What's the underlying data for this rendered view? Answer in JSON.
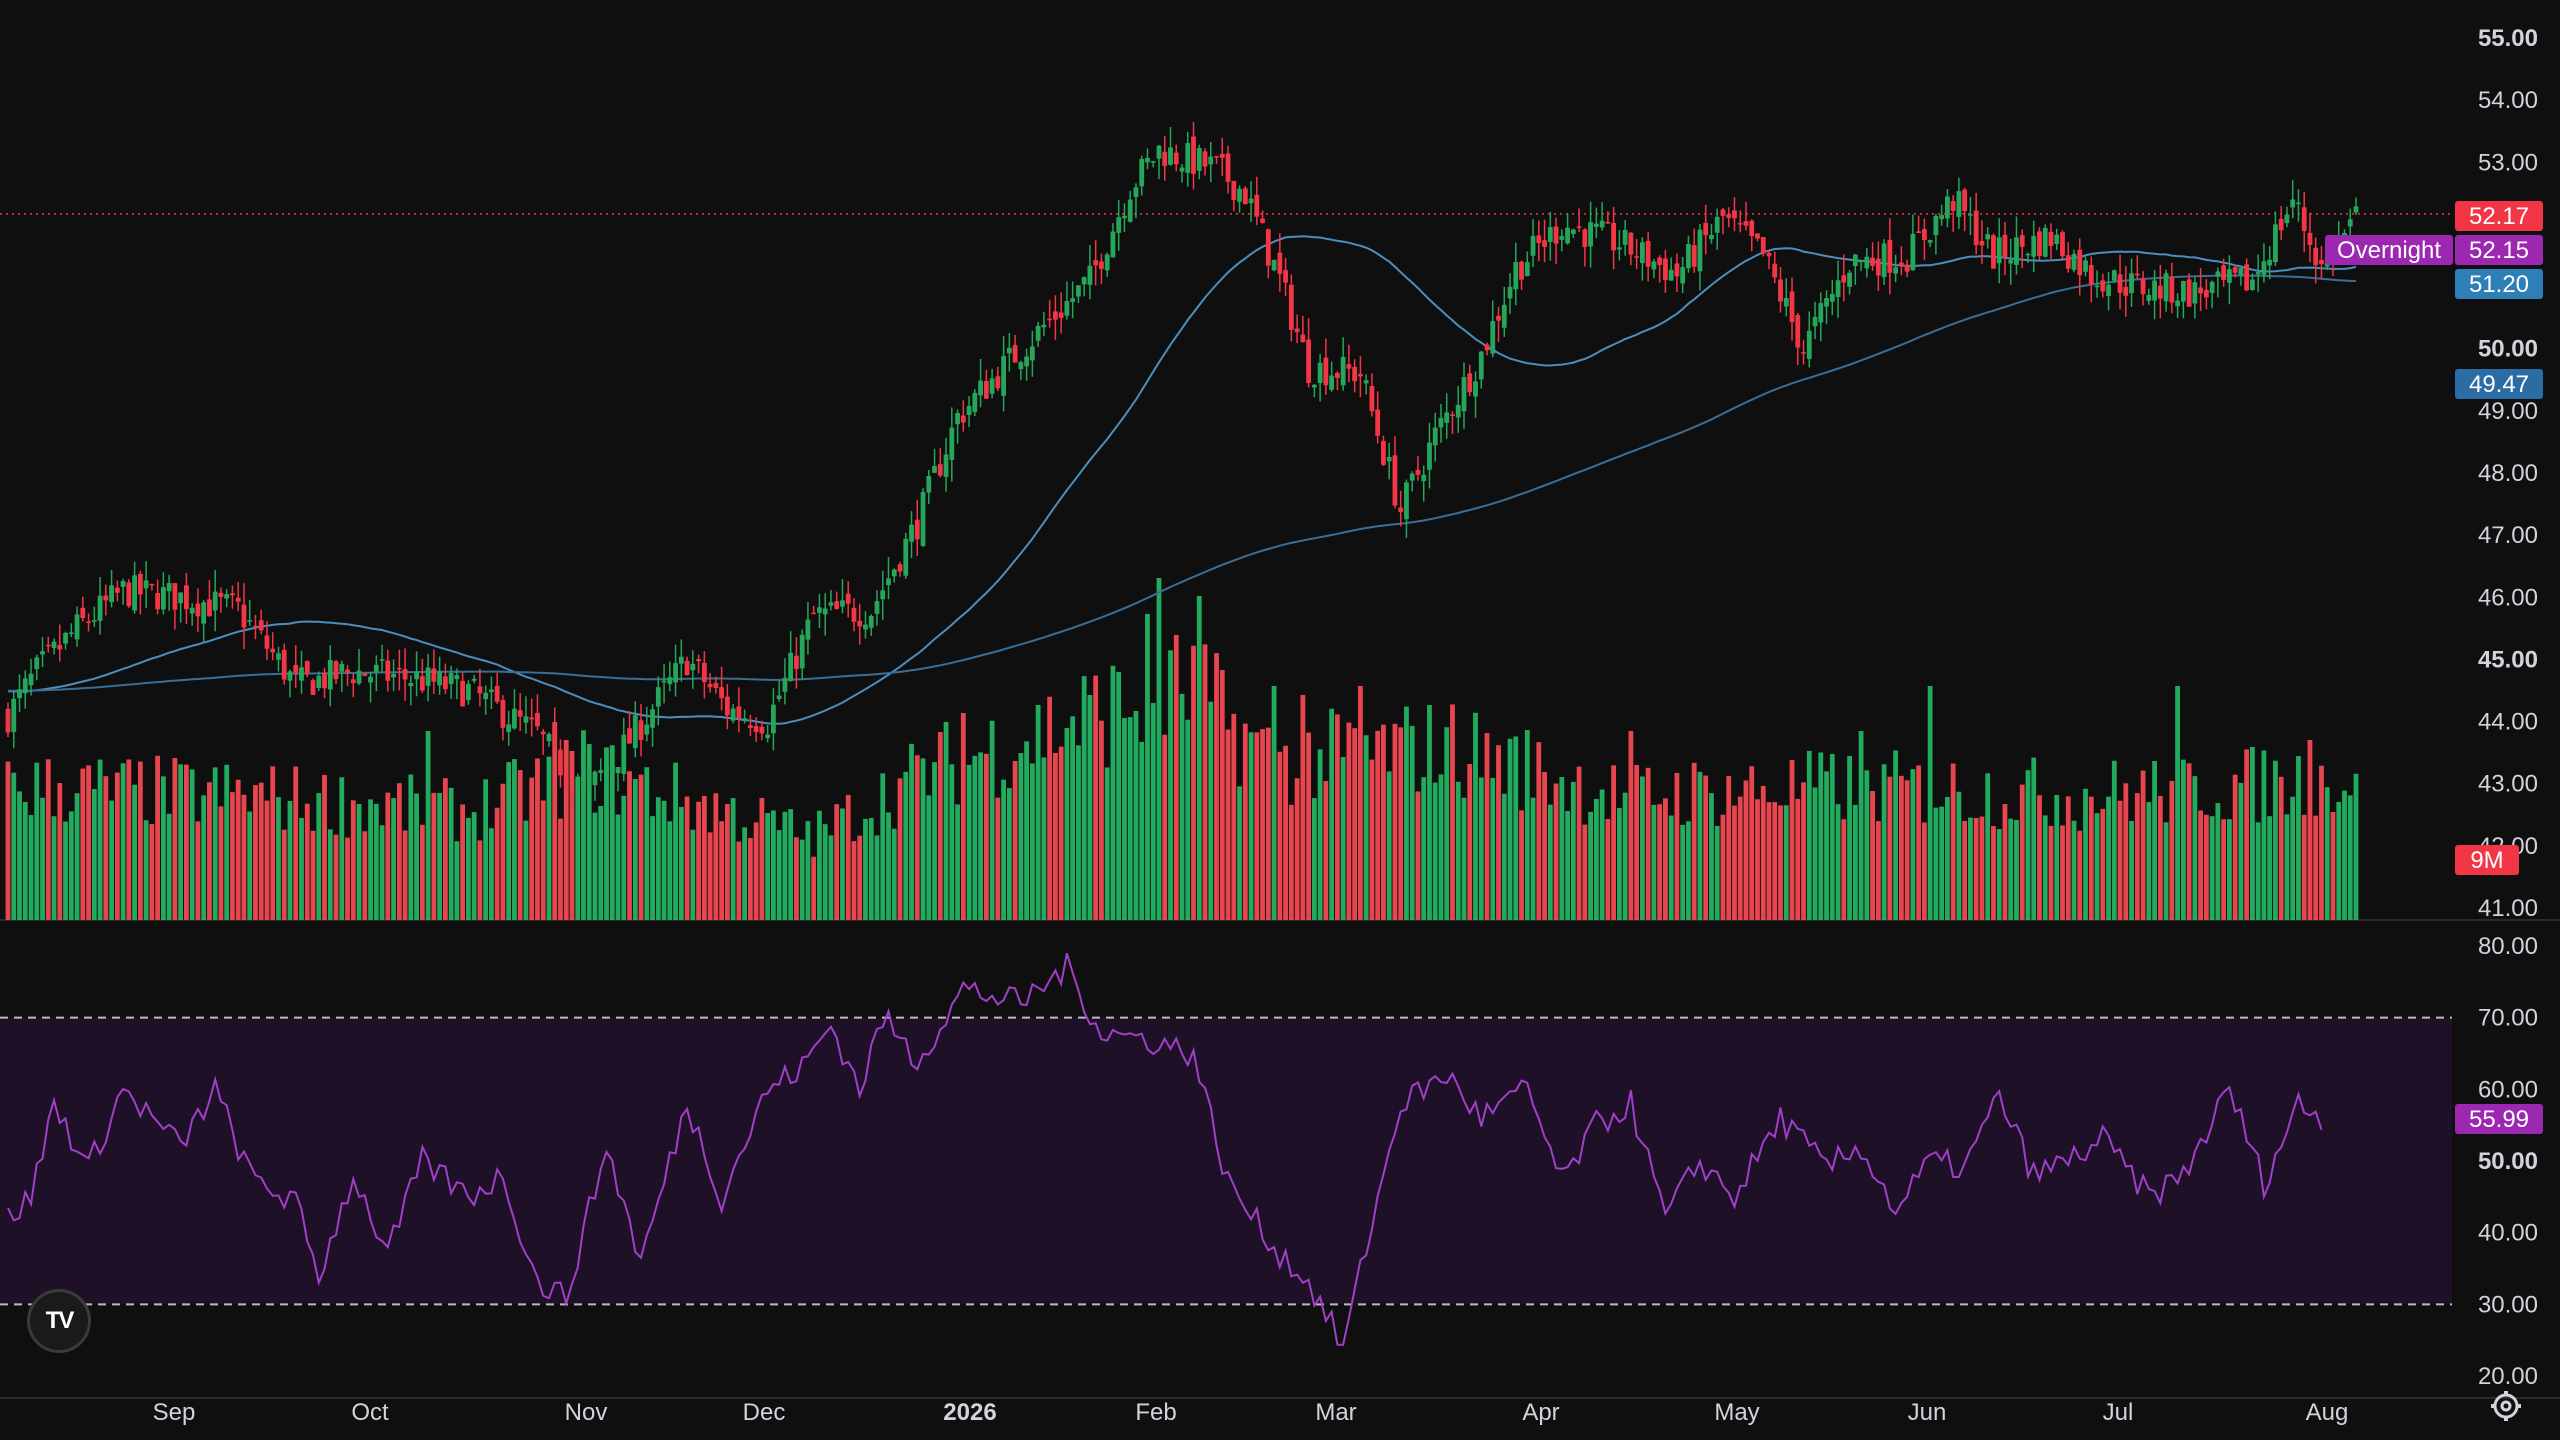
{
  "chart_data": [
    {
      "type": "candlestick",
      "panel": "price",
      "y_ticks": [
        "55.00",
        "54.00",
        "53.00",
        "50.00",
        "49.00",
        "48.00",
        "47.00",
        "46.00",
        "45.00",
        "44.00",
        "43.00",
        "42.00",
        "41.00"
      ],
      "y_ticks_bold": [
        "55.00",
        "50.00",
        "45.00"
      ],
      "ylim": [
        40.8,
        55.4
      ],
      "x_labels": [
        "Sep",
        "Oct",
        "Nov",
        "Dec",
        "2026",
        "Feb",
        "Mar",
        "Apr",
        "May",
        "Jun",
        "Jul",
        "Aug"
      ],
      "x_labels_bold": [
        "2026"
      ],
      "price_anchors": [
        [
          0,
          44.1
        ],
        [
          5,
          44.8
        ],
        [
          12,
          45.5
        ],
        [
          20,
          46.1
        ],
        [
          30,
          46.0
        ],
        [
          40,
          45.8
        ],
        [
          50,
          44.6
        ],
        [
          60,
          44.8
        ],
        [
          70,
          44.7
        ],
        [
          80,
          44.5
        ],
        [
          92,
          43.8
        ],
        [
          100,
          42.8
        ],
        [
          108,
          43.7
        ],
        [
          118,
          45.0
        ],
        [
          125,
          44.2
        ],
        [
          132,
          44.0
        ],
        [
          140,
          45.7
        ],
        [
          150,
          45.8
        ],
        [
          158,
          47.2
        ],
        [
          165,
          48.9
        ],
        [
          175,
          49.9
        ],
        [
          188,
          51.1
        ],
        [
          195,
          52.6
        ],
        [
          200,
          53.2
        ],
        [
          210,
          52.9
        ],
        [
          215,
          52.5
        ],
        [
          221,
          51.1
        ],
        [
          226,
          49.7
        ],
        [
          235,
          49.6
        ],
        [
          242,
          47.4
        ],
        [
          248,
          48.6
        ],
        [
          256,
          49.9
        ],
        [
          262,
          51.3
        ],
        [
          270,
          52.0
        ],
        [
          280,
          51.7
        ],
        [
          290,
          51.2
        ],
        [
          298,
          52.1
        ],
        [
          305,
          51.5
        ],
        [
          312,
          50.0
        ],
        [
          320,
          51.4
        ],
        [
          330,
          51.5
        ],
        [
          338,
          52.4
        ],
        [
          345,
          51.5
        ],
        [
          355,
          51.8
        ],
        [
          362,
          51.2
        ],
        [
          370,
          51.0
        ],
        [
          380,
          50.9
        ],
        [
          390,
          51.1
        ],
        [
          397,
          52.4
        ],
        [
          402,
          51.3
        ],
        [
          408,
          52.1
        ]
      ],
      "volume_anchors": [
        [
          0,
          1.6
        ],
        [
          40,
          1.5
        ],
        [
          80,
          1.3
        ],
        [
          100,
          1.8
        ],
        [
          140,
          1.0
        ],
        [
          160,
          1.8
        ],
        [
          190,
          2.5
        ],
        [
          205,
          2.8
        ],
        [
          220,
          1.9
        ],
        [
          250,
          2.1
        ],
        [
          280,
          1.5
        ],
        [
          320,
          1.6
        ],
        [
          360,
          1.5
        ],
        [
          408,
          1.7
        ]
      ],
      "volume_spikes": {
        "73": 2.1,
        "95": 2.2,
        "97": 2.0,
        "166": 2.3,
        "188": 2.5,
        "198": 3.4,
        "200": 3.8,
        "207": 3.6,
        "220": 2.6,
        "225": 2.5,
        "235": 2.6,
        "282": 2.1,
        "322": 2.1,
        "334": 2.6,
        "377": 2.6,
        "400": 2.0
      },
      "sma_short": {
        "name": "",
        "color": "#4a8fc0",
        "period": 50
      },
      "sma_long": {
        "name": "",
        "color": "#3b6e96",
        "period": 200
      },
      "last_price": {
        "value": "52.17",
        "color": "#f23645"
      },
      "overnight": {
        "label": "Overnight",
        "value": "52.15",
        "color": "#9c27b0"
      },
      "sma_short_badge": {
        "value": "51.20",
        "color": "#2e7fb8"
      },
      "sma_long_badge": {
        "value": "49.47",
        "color": "#2a6ca3"
      },
      "volume_badge": {
        "value": "9M",
        "color": "#f23645"
      },
      "colors": {
        "up": "#26a65b",
        "down": "#f23645",
        "up_vol": "#22ab5e",
        "down_vol": "#e8464f"
      }
    },
    {
      "type": "line",
      "panel": "rsi",
      "y_ticks": [
        "80.00",
        "70.00",
        "60.00",
        "50.00",
        "40.00",
        "30.00",
        "20.00"
      ],
      "y_ticks_bold": [
        "50.00"
      ],
      "ylim": [
        18,
        82
      ],
      "upper_band": 70,
      "lower_band": 30,
      "current": {
        "value": "55.99",
        "color": "#9c27b0"
      },
      "line_color": "#a03fc8",
      "band_fill": "#1e1026",
      "rsi_anchors": [
        [
          0,
          42
        ],
        [
          4,
          45
        ],
        [
          8,
          58
        ],
        [
          14,
          49
        ],
        [
          20,
          60
        ],
        [
          30,
          52
        ],
        [
          36,
          60
        ],
        [
          42,
          48
        ],
        [
          50,
          44
        ],
        [
          54,
          34
        ],
        [
          60,
          48
        ],
        [
          66,
          37
        ],
        [
          72,
          50
        ],
        [
          80,
          45
        ],
        [
          86,
          48
        ],
        [
          92,
          33
        ],
        [
          97,
          31
        ],
        [
          104,
          52
        ],
        [
          110,
          36
        ],
        [
          118,
          58
        ],
        [
          124,
          45
        ],
        [
          132,
          60
        ],
        [
          138,
          63
        ],
        [
          143,
          69
        ],
        [
          148,
          60
        ],
        [
          152,
          70
        ],
        [
          158,
          64
        ],
        [
          166,
          74
        ],
        [
          176,
          72
        ],
        [
          184,
          77
        ],
        [
          190,
          68
        ],
        [
          198,
          67
        ],
        [
          206,
          65
        ],
        [
          212,
          47
        ],
        [
          220,
          38
        ],
        [
          226,
          33
        ],
        [
          232,
          24
        ],
        [
          236,
          38
        ],
        [
          242,
          58
        ],
        [
          250,
          62
        ],
        [
          256,
          56
        ],
        [
          264,
          60
        ],
        [
          270,
          47
        ],
        [
          276,
          55
        ],
        [
          282,
          58
        ],
        [
          288,
          42
        ],
        [
          294,
          50
        ],
        [
          300,
          45
        ],
        [
          308,
          56
        ],
        [
          316,
          49
        ],
        [
          322,
          52
        ],
        [
          328,
          43
        ],
        [
          334,
          50
        ],
        [
          340,
          49
        ],
        [
          346,
          59
        ],
        [
          352,
          48
        ],
        [
          358,
          50
        ],
        [
          364,
          53
        ],
        [
          372,
          45
        ],
        [
          378,
          48
        ],
        [
          386,
          60
        ],
        [
          392,
          47
        ],
        [
          398,
          58
        ],
        [
          402,
          56
        ]
      ]
    }
  ],
  "logo": {
    "text": "TV"
  },
  "settings_icon": "gear-icon"
}
